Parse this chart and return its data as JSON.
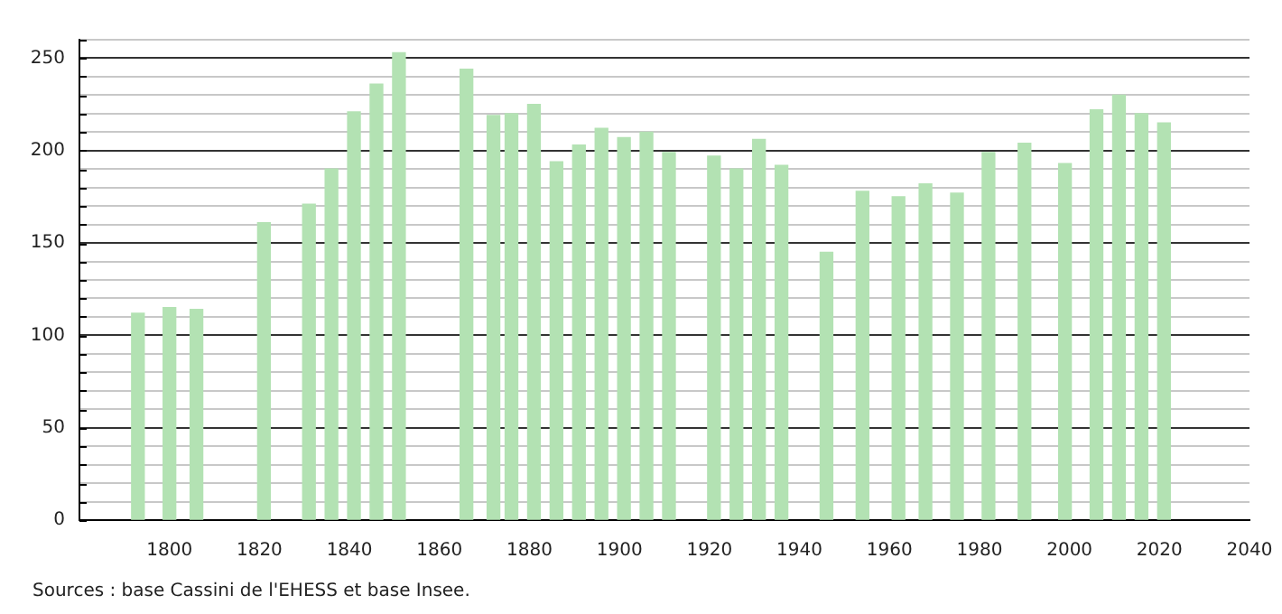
{
  "chart_data": {
    "type": "bar",
    "x": [
      1793,
      1800,
      1806,
      1821,
      1831,
      1836,
      1841,
      1846,
      1851,
      1866,
      1872,
      1876,
      1881,
      1886,
      1891,
      1896,
      1901,
      1906,
      1911,
      1921,
      1926,
      1931,
      1936,
      1946,
      1954,
      1962,
      1968,
      1975,
      1982,
      1990,
      1999,
      2006,
      2011,
      2016,
      2021
    ],
    "values": [
      112,
      115,
      114,
      161,
      171,
      190,
      221,
      236,
      253,
      244,
      219,
      220,
      225,
      194,
      203,
      212,
      207,
      210,
      199,
      197,
      190,
      206,
      192,
      145,
      178,
      175,
      182,
      177,
      199,
      204,
      193,
      222,
      230,
      220,
      215
    ],
    "color": "#b3e2b3",
    "xlim": [
      1780,
      2040
    ],
    "xticks": [
      1800,
      1820,
      1840,
      1860,
      1880,
      1900,
      1920,
      1940,
      1960,
      1980,
      2000,
      2020,
      2040
    ],
    "ylim": [
      0,
      260
    ],
    "yticks": [
      0,
      {
        "value": 10,
        "label": null
      },
      {
        "value": 20,
        "label": null
      },
      {
        "value": 30,
        "label": null
      },
      {
        "value": 40,
        "label": null
      },
      50,
      {
        "value": 60,
        "label": null
      },
      {
        "value": 70,
        "label": null
      },
      {
        "value": 80,
        "label": null
      },
      {
        "value": 90,
        "label": null
      },
      100,
      {
        "value": 110,
        "label": null
      },
      {
        "value": 120,
        "label": null
      },
      {
        "value": 130,
        "label": null
      },
      {
        "value": 140,
        "label": null
      },
      150,
      {
        "value": 160,
        "label": null
      },
      {
        "value": 170,
        "label": null
      },
      {
        "value": 180,
        "label": null
      },
      {
        "value": 190,
        "label": null
      },
      200,
      {
        "value": 210,
        "label": null
      },
      {
        "value": 220,
        "label": null
      },
      {
        "value": 230,
        "label": null
      },
      {
        "value": 240,
        "label": null
      },
      250,
      {
        "value": 260,
        "label": null
      }
    ],
    "grid": "y",
    "annotations": [
      "Sources : base Cassini de l'EHESS et base Insee."
    ]
  }
}
